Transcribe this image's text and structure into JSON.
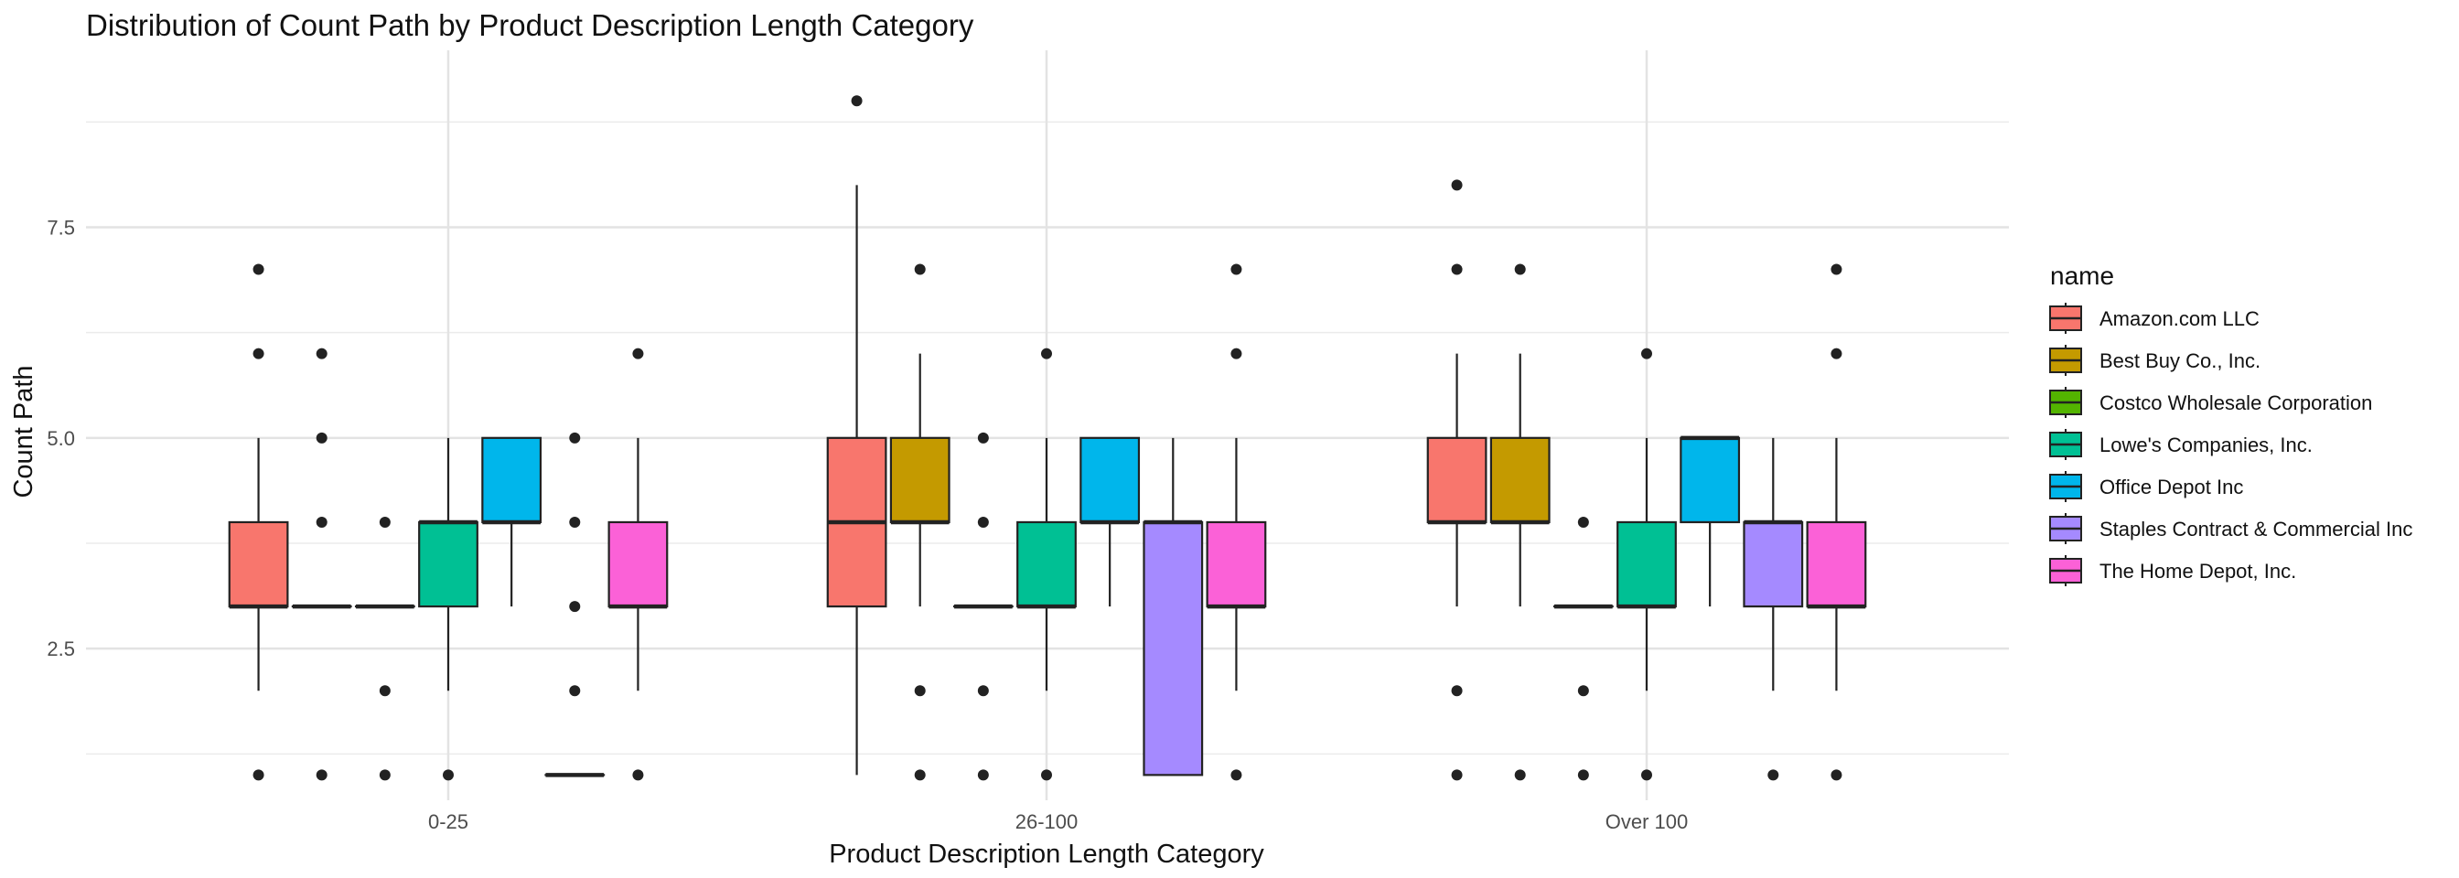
{
  "chart_data": {
    "type": "boxplot",
    "title": "Distribution of Count Path by Product Description Length Category",
    "xlabel": "Product Description Length Category",
    "ylabel": "Count Path",
    "categories": [
      "0-25",
      "26-100",
      "Over 100"
    ],
    "ylim": [
      0.7,
      9.6
    ],
    "yticks": [
      2.5,
      5.0,
      7.5
    ],
    "ytick_labels": [
      "2.5",
      "5.0",
      "7.5"
    ],
    "grid": true,
    "legend_title": "name",
    "legend_position": "right",
    "series": [
      {
        "name": "Amazon.com LLC",
        "color": "#F8766D",
        "boxes": [
          {
            "category": "0-25",
            "min": 2,
            "q1": 3,
            "median": 3,
            "q3": 4,
            "max": 5,
            "outliers": [
              1,
              6,
              7
            ]
          },
          {
            "category": "26-100",
            "min": 1,
            "q1": 3,
            "median": 4,
            "q3": 5,
            "max": 8,
            "outliers": [
              9
            ]
          },
          {
            "category": "Over 100",
            "min": 3,
            "q1": 4,
            "median": 4,
            "q3": 5,
            "max": 6,
            "outliers": [
              1,
              2,
              7,
              8
            ]
          }
        ]
      },
      {
        "name": "Best Buy Co., Inc.",
        "color": "#C49A00",
        "boxes": [
          {
            "category": "0-25",
            "min": 3,
            "q1": 3,
            "median": 3,
            "q3": 3,
            "max": 3,
            "outliers": [
              1,
              4,
              5,
              6
            ]
          },
          {
            "category": "26-100",
            "min": 3,
            "q1": 4,
            "median": 4,
            "q3": 5,
            "max": 6,
            "outliers": [
              1,
              2,
              7
            ]
          },
          {
            "category": "Over 100",
            "min": 3,
            "q1": 4,
            "median": 4,
            "q3": 5,
            "max": 6,
            "outliers": [
              1,
              7
            ]
          }
        ]
      },
      {
        "name": "Costco Wholesale Corporation",
        "color": "#53B400",
        "boxes": [
          {
            "category": "0-25",
            "min": 3,
            "q1": 3,
            "median": 3,
            "q3": 3,
            "max": 3,
            "outliers": [
              1,
              2,
              4
            ]
          },
          {
            "category": "26-100",
            "min": 3,
            "q1": 3,
            "median": 3,
            "q3": 3,
            "max": 3,
            "outliers": [
              1,
              2,
              4,
              5
            ]
          },
          {
            "category": "Over 100",
            "min": 3,
            "q1": 3,
            "median": 3,
            "q3": 3,
            "max": 3,
            "outliers": [
              1,
              2,
              4
            ]
          }
        ]
      },
      {
        "name": "Lowe's Companies, Inc.",
        "color": "#00C094",
        "boxes": [
          {
            "category": "0-25",
            "min": 2,
            "q1": 3,
            "median": 4,
            "q3": 4,
            "max": 5,
            "outliers": [
              1
            ]
          },
          {
            "category": "26-100",
            "min": 2,
            "q1": 3,
            "median": 3,
            "q3": 4,
            "max": 5,
            "outliers": [
              1,
              6
            ]
          },
          {
            "category": "Over 100",
            "min": 2,
            "q1": 3,
            "median": 3,
            "q3": 4,
            "max": 5,
            "outliers": [
              1,
              6
            ]
          }
        ]
      },
      {
        "name": "Office Depot Inc",
        "color": "#00B6EB",
        "boxes": [
          {
            "category": "0-25",
            "min": 3,
            "q1": 4,
            "median": 4,
            "q3": 5,
            "max": 5,
            "outliers": []
          },
          {
            "category": "26-100",
            "min": 3,
            "q1": 4,
            "median": 4,
            "q3": 5,
            "max": 5,
            "outliers": []
          },
          {
            "category": "Over 100",
            "min": 3,
            "q1": 4,
            "median": 5,
            "q3": 5,
            "max": 5,
            "outliers": []
          }
        ]
      },
      {
        "name": "Staples Contract & Commercial Inc",
        "color": "#A58AFF",
        "boxes": [
          {
            "category": "0-25",
            "min": 1,
            "q1": 1,
            "median": 1,
            "q3": 1,
            "max": 1,
            "outliers": [
              2,
              3,
              4,
              5
            ]
          },
          {
            "category": "26-100",
            "min": 1,
            "q1": 1,
            "median": 4,
            "q3": 4,
            "max": 5,
            "outliers": []
          },
          {
            "category": "Over 100",
            "min": 2,
            "q1": 3,
            "median": 4,
            "q3": 4,
            "max": 5,
            "outliers": [
              1
            ]
          }
        ]
      },
      {
        "name": "The Home Depot, Inc.",
        "color": "#FB61D7",
        "boxes": [
          {
            "category": "0-25",
            "min": 2,
            "q1": 3,
            "median": 3,
            "q3": 4,
            "max": 5,
            "outliers": [
              1,
              6
            ]
          },
          {
            "category": "26-100",
            "min": 2,
            "q1": 3,
            "median": 3,
            "q3": 4,
            "max": 5,
            "outliers": [
              1,
              6,
              7
            ]
          },
          {
            "category": "Over 100",
            "min": 2,
            "q1": 3,
            "median": 3,
            "q3": 4,
            "max": 5,
            "outliers": [
              1,
              6,
              7
            ]
          }
        ]
      }
    ]
  }
}
